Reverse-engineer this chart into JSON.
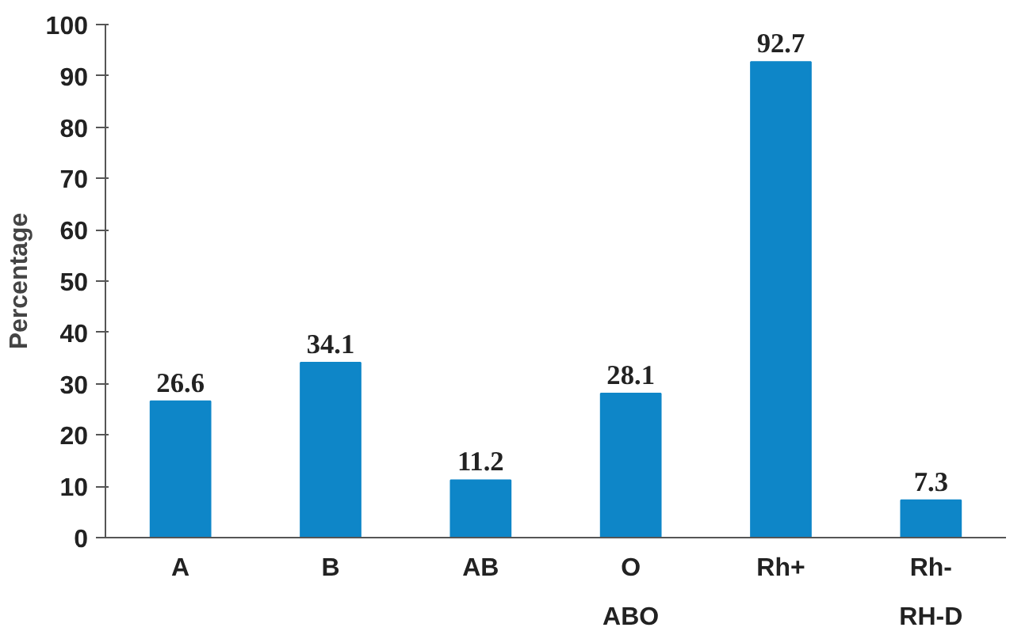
{
  "chart_data": {
    "type": "bar",
    "ylabel": "Percentage",
    "categories": [
      "A",
      "B",
      "AB",
      "O",
      "Rh+",
      "Rh-"
    ],
    "values": [
      26.6,
      34.1,
      11.2,
      28.1,
      92.7,
      7.3
    ],
    "color": "#0e86c8",
    "ylim": [
      0,
      100
    ],
    "yticks": [
      0,
      10,
      20,
      30,
      40,
      50,
      60,
      70,
      80,
      90,
      100
    ],
    "data_labels": true,
    "grid": false,
    "annotations": [
      "ABO",
      "RH-D"
    ]
  }
}
